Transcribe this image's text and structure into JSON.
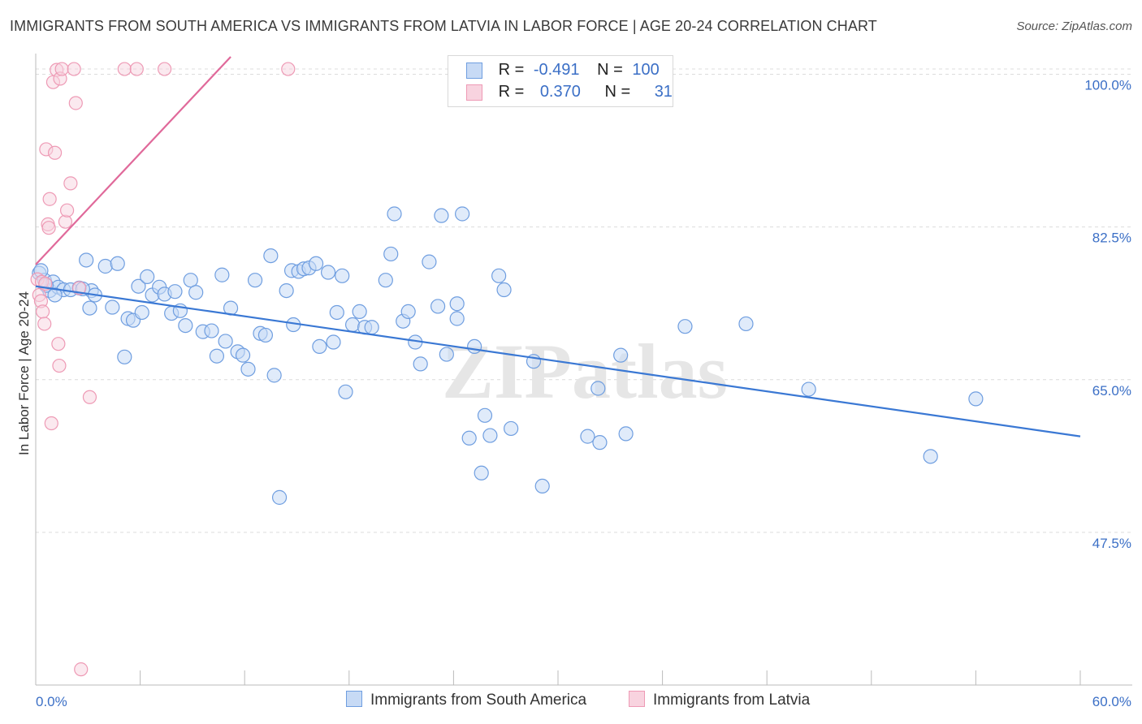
{
  "title": "IMMIGRANTS FROM SOUTH AMERICA VS IMMIGRANTS FROM LATVIA IN LABOR FORCE | AGE 20-24 CORRELATION CHART",
  "source": "Source: ZipAtlas.com",
  "legend": {
    "row1": {
      "r_label": "R =",
      "r_value": "-0.491",
      "n_label": "N =",
      "n_value": "100"
    },
    "row2": {
      "r_label": "R =",
      "r_value": "0.370",
      "n_label": "N =",
      "n_value": "31"
    }
  },
  "colors": {
    "blue_fill": "#c7daf5",
    "blue_stroke": "#6f9ee0",
    "blue_line": "#3a78d4",
    "pink_fill": "#f8d3df",
    "pink_stroke": "#ee9ab5",
    "pink_line": "#e0699a",
    "tick_label": "#3b6fc6",
    "grid": "#dcdcdc"
  },
  "chart_data": {
    "type": "scatter",
    "title": "IMMIGRANTS FROM SOUTH AMERICA VS IMMIGRANTS FROM LATVIA IN LABOR FORCE | AGE 20-24 CORRELATION CHART",
    "xlabel": "",
    "ylabel": "In Labor Force | Age 20-24",
    "xlim": [
      0,
      60
    ],
    "ylim": [
      30,
      102
    ],
    "x_tick_labels": [
      "0.0%",
      "60.0%"
    ],
    "y_ticks": [
      100.0,
      82.5,
      65.0,
      47.5
    ],
    "y_tick_labels": [
      "100.0%",
      "82.5%",
      "65.0%",
      "47.5%"
    ],
    "watermark": "ZIPatlas",
    "series": [
      {
        "name": "Immigrants from South America",
        "r": -0.491,
        "n": 100,
        "trend": [
          [
            0.0,
            75.7
          ],
          [
            60.0,
            58.5
          ]
        ],
        "points": [
          [
            0.2,
            77.2
          ],
          [
            0.5,
            76.4
          ],
          [
            0.8,
            75.2
          ],
          [
            1.0,
            76.2
          ],
          [
            1.3,
            75.6
          ],
          [
            1.6,
            75.3
          ],
          [
            2.0,
            75.3
          ],
          [
            2.5,
            75.5
          ],
          [
            2.9,
            78.7
          ],
          [
            3.2,
            75.2
          ],
          [
            3.4,
            74.7
          ],
          [
            3.1,
            73.2
          ],
          [
            4.0,
            78.0
          ],
          [
            4.4,
            73.3
          ],
          [
            4.7,
            78.3
          ],
          [
            5.1,
            67.6
          ],
          [
            5.3,
            72.0
          ],
          [
            5.6,
            71.8
          ],
          [
            5.9,
            75.7
          ],
          [
            6.1,
            72.7
          ],
          [
            6.4,
            76.8
          ],
          [
            6.7,
            74.7
          ],
          [
            7.1,
            75.6
          ],
          [
            7.4,
            74.8
          ],
          [
            7.8,
            72.6
          ],
          [
            8.0,
            75.1
          ],
          [
            8.3,
            72.9
          ],
          [
            8.6,
            71.2
          ],
          [
            8.9,
            76.4
          ],
          [
            9.2,
            75.0
          ],
          [
            9.6,
            70.5
          ],
          [
            10.1,
            70.6
          ],
          [
            10.4,
            67.7
          ],
          [
            10.7,
            77.0
          ],
          [
            10.9,
            69.4
          ],
          [
            11.2,
            73.2
          ],
          [
            11.6,
            68.2
          ],
          [
            11.9,
            67.8
          ],
          [
            12.2,
            66.2
          ],
          [
            12.6,
            76.4
          ],
          [
            12.9,
            70.3
          ],
          [
            13.2,
            70.1
          ],
          [
            13.5,
            79.2
          ],
          [
            13.7,
            65.5
          ],
          [
            14.0,
            51.5
          ],
          [
            14.4,
            75.2
          ],
          [
            14.7,
            77.5
          ],
          [
            14.8,
            71.3
          ],
          [
            15.1,
            77.4
          ],
          [
            15.4,
            77.7
          ],
          [
            15.7,
            77.8
          ],
          [
            16.1,
            78.3
          ],
          [
            16.3,
            68.8
          ],
          [
            16.8,
            77.3
          ],
          [
            17.1,
            69.3
          ],
          [
            17.3,
            72.7
          ],
          [
            17.6,
            76.9
          ],
          [
            17.8,
            63.6
          ],
          [
            18.2,
            71.3
          ],
          [
            18.6,
            72.8
          ],
          [
            18.9,
            71.0
          ],
          [
            19.3,
            71.0
          ],
          [
            20.1,
            76.4
          ],
          [
            20.4,
            79.4
          ],
          [
            20.6,
            84.0
          ],
          [
            21.1,
            71.7
          ],
          [
            21.4,
            72.8
          ],
          [
            21.8,
            69.3
          ],
          [
            22.1,
            66.8
          ],
          [
            22.6,
            78.5
          ],
          [
            23.1,
            73.4
          ],
          [
            23.3,
            83.8
          ],
          [
            23.6,
            67.9
          ],
          [
            24.2,
            72.0
          ],
          [
            24.5,
            84.0
          ],
          [
            24.2,
            73.7
          ],
          [
            24.9,
            58.3
          ],
          [
            25.2,
            68.8
          ],
          [
            25.6,
            54.3
          ],
          [
            25.8,
            60.9
          ],
          [
            26.1,
            58.6
          ],
          [
            26.6,
            76.9
          ],
          [
            26.9,
            75.3
          ],
          [
            27.3,
            59.4
          ],
          [
            28.6,
            67.1
          ],
          [
            29.1,
            52.8
          ],
          [
            31.7,
            58.5
          ],
          [
            32.3,
            64.0
          ],
          [
            32.4,
            57.8
          ],
          [
            33.6,
            67.8
          ],
          [
            33.9,
            58.8
          ],
          [
            37.3,
            71.1
          ],
          [
            40.8,
            71.4
          ],
          [
            44.4,
            63.9
          ],
          [
            51.4,
            56.2
          ],
          [
            54.0,
            62.8
          ],
          [
            0.3,
            77.5
          ],
          [
            0.6,
            75.8
          ],
          [
            1.1,
            74.7
          ],
          [
            2.7,
            75.4
          ]
        ]
      },
      {
        "name": "Immigrants from Latvia",
        "r": 0.37,
        "n": 31,
        "trend": [
          [
            0.0,
            78.2
          ],
          [
            11.2,
            102.0
          ]
        ],
        "points": [
          [
            0.1,
            76.5
          ],
          [
            0.2,
            74.7
          ],
          [
            0.3,
            74.0
          ],
          [
            0.4,
            72.8
          ],
          [
            0.5,
            71.4
          ],
          [
            0.6,
            91.4
          ],
          [
            0.7,
            82.8
          ],
          [
            0.75,
            82.4
          ],
          [
            0.8,
            85.7
          ],
          [
            0.9,
            60.0
          ],
          [
            1.0,
            99.1
          ],
          [
            1.1,
            91.0
          ],
          [
            1.2,
            100.5
          ],
          [
            1.3,
            69.1
          ],
          [
            1.35,
            66.6
          ],
          [
            1.4,
            99.5
          ],
          [
            1.5,
            100.6
          ],
          [
            1.7,
            83.1
          ],
          [
            1.8,
            84.4
          ],
          [
            2.0,
            87.5
          ],
          [
            2.2,
            100.6
          ],
          [
            2.3,
            96.7
          ],
          [
            2.5,
            75.5
          ],
          [
            2.6,
            31.8
          ],
          [
            3.1,
            63.0
          ],
          [
            5.1,
            100.6
          ],
          [
            5.8,
            100.6
          ],
          [
            7.4,
            100.6
          ],
          [
            14.5,
            100.6
          ],
          [
            0.35,
            76.2
          ],
          [
            0.55,
            76.0
          ]
        ]
      }
    ]
  },
  "bottom_legend": {
    "item1": "Immigrants from South America",
    "item2": "Immigrants from Latvia"
  }
}
